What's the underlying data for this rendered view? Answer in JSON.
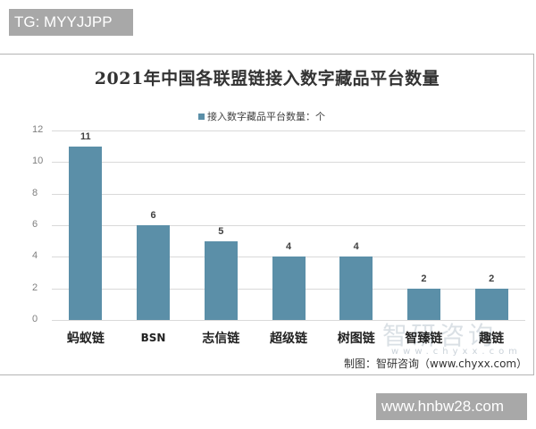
{
  "header": {
    "badge": "TG: MYYJJPP"
  },
  "footer": {
    "badge": "www.hnbw28.com"
  },
  "chart": {
    "title": "2021年中国各联盟链接入数字藏品平台数量",
    "legend": "接入数字藏品平台数量：个",
    "source": "制图：智研咨询（www.chyxx.com）",
    "watermark": "智研咨询",
    "watermark_url": "www.chyxx.com",
    "bar_color": "#5b8fa8"
  },
  "chart_data": {
    "type": "bar",
    "title": "2021年中国各联盟链接入数字藏品平台数量",
    "categories": [
      "蚂蚁链",
      "BSN",
      "志信链",
      "超级链",
      "树图链",
      "智臻链",
      "趣链"
    ],
    "series": [
      {
        "name": "接入数字藏品平台数量：个",
        "values": [
          11,
          6,
          5,
          4,
          4,
          2,
          2
        ]
      }
    ],
    "xlabel": "",
    "ylabel": "",
    "ylim": [
      0,
      12
    ],
    "yticks": [
      0,
      2,
      4,
      6,
      8,
      10,
      12
    ],
    "grid": true,
    "legend_position": "top",
    "data_labels": [
      "11",
      "6",
      "5",
      "4",
      "4",
      "2",
      "2"
    ]
  }
}
